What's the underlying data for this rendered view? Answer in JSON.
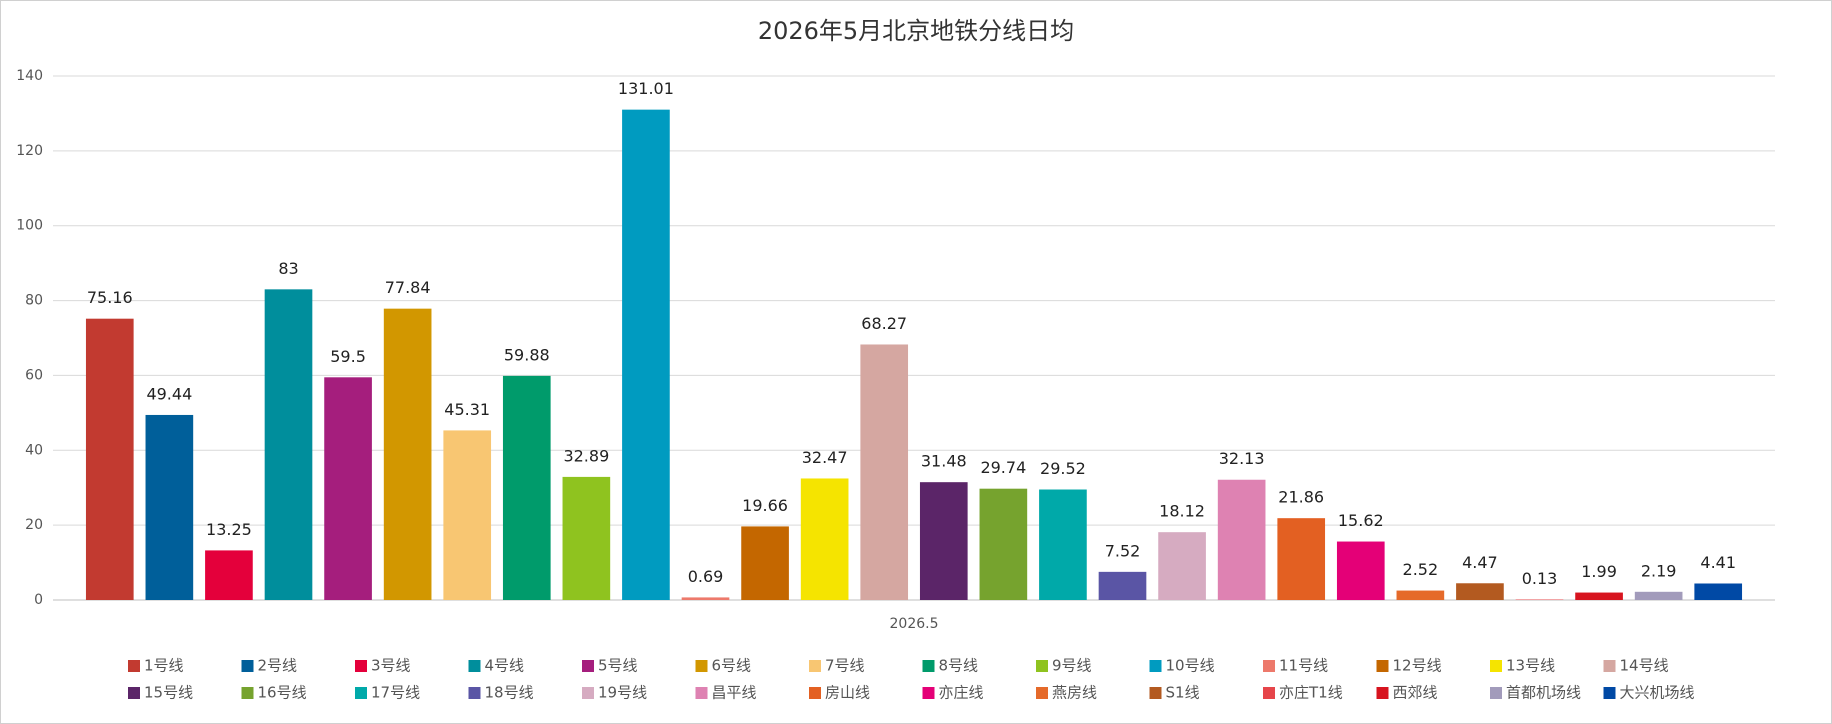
{
  "chart_data": {
    "type": "bar",
    "title": "2026年5月北京地铁分线日均",
    "categories": [
      "2026.5"
    ],
    "ylim": [
      0,
      140
    ],
    "yticks": [
      0,
      20,
      40,
      60,
      80,
      100,
      120,
      140
    ],
    "grid": true,
    "legend": "bottom",
    "series": [
      {
        "name": "1号线",
        "color": "#c23a30",
        "values": [
          75.16
        ]
      },
      {
        "name": "2号线",
        "color": "#005f9a",
        "values": [
          49.44
        ]
      },
      {
        "name": "3号线",
        "color": "#e4003b",
        "values": [
          13.25
        ]
      },
      {
        "name": "4号线",
        "color": "#008e9c",
        "values": [
          83
        ]
      },
      {
        "name": "5号线",
        "color": "#a51e7d",
        "values": [
          59.5
        ]
      },
      {
        "name": "6号线",
        "color": "#d29700",
        "values": [
          77.84
        ]
      },
      {
        "name": "7号线",
        "color": "#f8c672",
        "values": [
          45.31
        ]
      },
      {
        "name": "8号线",
        "color": "#009b6b",
        "values": [
          59.88
        ]
      },
      {
        "name": "9号线",
        "color": "#8fc31f",
        "values": [
          32.89
        ]
      },
      {
        "name": "10号线",
        "color": "#009bc0",
        "values": [
          131.01
        ]
      },
      {
        "name": "11号线",
        "color": "#ed796b",
        "values": [
          0.69
        ]
      },
      {
        "name": "12号线",
        "color": "#c46700",
        "values": [
          19.66
        ]
      },
      {
        "name": "13号线",
        "color": "#f5e400",
        "values": [
          32.47
        ]
      },
      {
        "name": "14号线",
        "color": "#d5a7a1",
        "values": [
          68.27
        ]
      },
      {
        "name": "15号线",
        "color": "#5b2568",
        "values": [
          31.48
        ]
      },
      {
        "name": "16号线",
        "color": "#76a32e",
        "values": [
          29.74
        ]
      },
      {
        "name": "17号线",
        "color": "#00a9a9",
        "values": [
          29.52
        ]
      },
      {
        "name": "18号线",
        "color": "#5a55a5",
        "values": [
          7.52
        ]
      },
      {
        "name": "19号线",
        "color": "#d6abc1",
        "values": [
          18.12
        ]
      },
      {
        "name": "昌平线",
        "color": "#de82b2",
        "values": [
          32.13
        ]
      },
      {
        "name": "房山线",
        "color": "#e36022",
        "values": [
          21.86
        ]
      },
      {
        "name": "亦庄线",
        "color": "#e40077",
        "values": [
          15.62
        ]
      },
      {
        "name": "燕房线",
        "color": "#e56a2a",
        "values": [
          2.52
        ]
      },
      {
        "name": "S1线",
        "color": "#b35a20",
        "values": [
          4.47
        ]
      },
      {
        "name": "亦庄T1线",
        "color": "#e6454a",
        "values": [
          0.13
        ]
      },
      {
        "name": "西郊线",
        "color": "#d7141f",
        "values": [
          1.99
        ]
      },
      {
        "name": "首都机场线",
        "color": "#a29bbb",
        "values": [
          2.19
        ]
      },
      {
        "name": "大兴机场线",
        "color": "#0049a5",
        "values": [
          4.41
        ]
      }
    ]
  }
}
